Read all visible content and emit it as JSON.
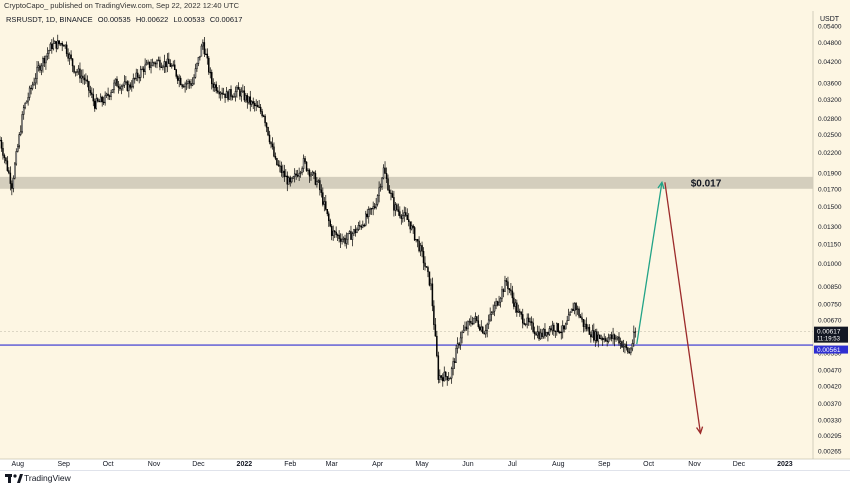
{
  "header": {
    "published": "CryptoCapo_ published on TradingView.com, Sep 22, 2022 12:40 UTC"
  },
  "symbol": {
    "name": "RSRUSDT, 1D, BINANCE",
    "open": "O0.00535",
    "high": "H0.00622",
    "low": "L0.00533",
    "close": "C0.00617"
  },
  "footer": {
    "brand": "TradingView"
  },
  "colors": {
    "background": "#fdf6e3",
    "candle_up": "#ffffff",
    "candle_down": "#000000",
    "zone": "#cfcab8",
    "support_line": "#2f2fd1",
    "green_arrow": "#22a387",
    "red_arrow": "#9c2a2a",
    "price_tag": "#131722",
    "support_tag": "#2f2fd1"
  },
  "chart_data": {
    "type": "candlestick",
    "y_axis_title": "USDT",
    "y_ticks": [
      "0.05400",
      "0.04800",
      "0.04200",
      "0.03600",
      "0.03200",
      "0.02800",
      "0.02500",
      "0.02200",
      "0.01900",
      "0.01700",
      "0.01500",
      "0.01300",
      "0.01150",
      "0.01000",
      "0.00850",
      "0.00750",
      "0.00670",
      "0.00530",
      "0.00470",
      "0.00420",
      "0.00370",
      "0.00330",
      "0.00295",
      "0.00265"
    ],
    "ylim": [
      0.0025,
      0.06
    ],
    "y_scale": "log",
    "x_ticks": [
      "Aug",
      "Sep",
      "Oct",
      "Nov",
      "Dec",
      "2022",
      "Feb",
      "Mar",
      "Apr",
      "May",
      "Jun",
      "Jul",
      "Aug",
      "Sep",
      "Oct",
      "Nov",
      "Dec",
      "2023"
    ],
    "x_range": [
      "2021-07-20",
      "2023-01-20"
    ],
    "close_series": [
      {
        "date": "2021-07-20",
        "close": 0.024
      },
      {
        "date": "2021-07-28",
        "close": 0.0175
      },
      {
        "date": "2021-08-05",
        "close": 0.03
      },
      {
        "date": "2021-08-15",
        "close": 0.04
      },
      {
        "date": "2021-08-24",
        "close": 0.047
      },
      {
        "date": "2021-09-01",
        "close": 0.048
      },
      {
        "date": "2021-09-08",
        "close": 0.04
      },
      {
        "date": "2021-09-15",
        "close": 0.037
      },
      {
        "date": "2021-09-22",
        "close": 0.031
      },
      {
        "date": "2021-09-29",
        "close": 0.032
      },
      {
        "date": "2021-10-06",
        "close": 0.036
      },
      {
        "date": "2021-10-15",
        "close": 0.035
      },
      {
        "date": "2021-10-25",
        "close": 0.04
      },
      {
        "date": "2021-11-03",
        "close": 0.042
      },
      {
        "date": "2021-11-12",
        "close": 0.041
      },
      {
        "date": "2021-11-20",
        "close": 0.036
      },
      {
        "date": "2021-11-27",
        "close": 0.036
      },
      {
        "date": "2021-12-04",
        "close": 0.048
      },
      {
        "date": "2021-12-10",
        "close": 0.036
      },
      {
        "date": "2021-12-20",
        "close": 0.033
      },
      {
        "date": "2021-12-28",
        "close": 0.034
      },
      {
        "date": "2022-01-06",
        "close": 0.031
      },
      {
        "date": "2022-01-14",
        "close": 0.029
      },
      {
        "date": "2022-01-22",
        "close": 0.0205
      },
      {
        "date": "2022-02-01",
        "close": 0.0175
      },
      {
        "date": "2022-02-10",
        "close": 0.0205
      },
      {
        "date": "2022-02-20",
        "close": 0.0175
      },
      {
        "date": "2022-03-01",
        "close": 0.0125
      },
      {
        "date": "2022-03-10",
        "close": 0.0118
      },
      {
        "date": "2022-03-20",
        "close": 0.013
      },
      {
        "date": "2022-03-30",
        "close": 0.015
      },
      {
        "date": "2022-04-05",
        "close": 0.0195
      },
      {
        "date": "2022-04-12",
        "close": 0.015
      },
      {
        "date": "2022-04-22",
        "close": 0.0135
      },
      {
        "date": "2022-04-30",
        "close": 0.011
      },
      {
        "date": "2022-05-07",
        "close": 0.0085
      },
      {
        "date": "2022-05-12",
        "close": 0.0045
      },
      {
        "date": "2022-05-20",
        "close": 0.0045
      },
      {
        "date": "2022-05-27",
        "close": 0.006
      },
      {
        "date": "2022-06-05",
        "close": 0.0068
      },
      {
        "date": "2022-06-12",
        "close": 0.0062
      },
      {
        "date": "2022-06-20",
        "close": 0.0075
      },
      {
        "date": "2022-06-27",
        "close": 0.0088
      },
      {
        "date": "2022-07-05",
        "close": 0.007
      },
      {
        "date": "2022-07-12",
        "close": 0.0065
      },
      {
        "date": "2022-07-20",
        "close": 0.006
      },
      {
        "date": "2022-07-28",
        "close": 0.0064
      },
      {
        "date": "2022-08-05",
        "close": 0.0062
      },
      {
        "date": "2022-08-12",
        "close": 0.0075
      },
      {
        "date": "2022-08-18",
        "close": 0.0065
      },
      {
        "date": "2022-08-25",
        "close": 0.006
      },
      {
        "date": "2022-09-02",
        "close": 0.0059
      },
      {
        "date": "2022-09-10",
        "close": 0.0059
      },
      {
        "date": "2022-09-18",
        "close": 0.0053
      },
      {
        "date": "2022-09-22",
        "close": 0.00617
      }
    ],
    "zone": {
      "low": 0.017,
      "high": 0.0185,
      "label": "$0.017"
    },
    "support": {
      "value": 0.00561,
      "label": "0.00561"
    },
    "last_price": {
      "value": 0.00617,
      "label": "0.00617",
      "countdown": "11:19:53"
    },
    "projection": {
      "up": {
        "from_date": "2022-09-23",
        "from": 0.00565,
        "to_date": "2022-10-10",
        "to": 0.0178
      },
      "down": {
        "from_date": "2022-10-12",
        "from": 0.0178,
        "to_date": "2022-11-05",
        "to": 0.003
      }
    }
  }
}
